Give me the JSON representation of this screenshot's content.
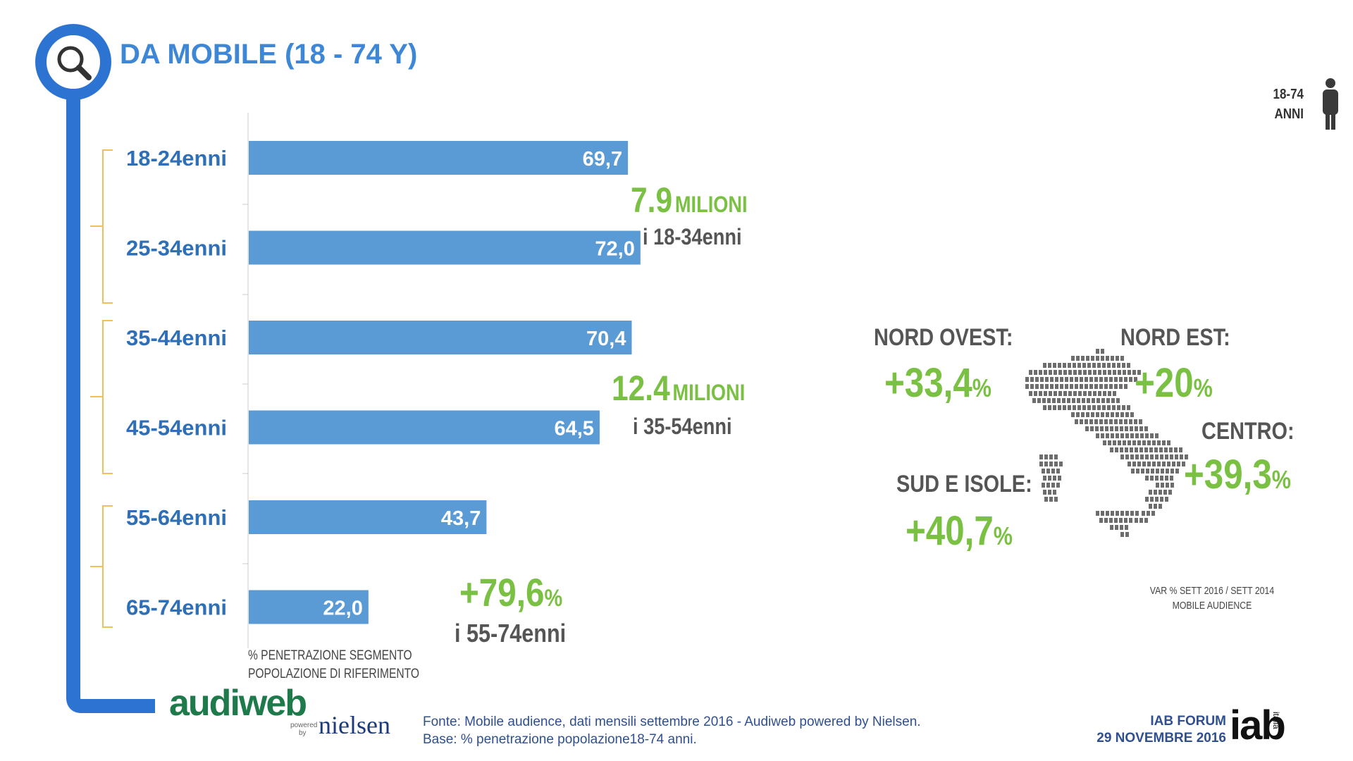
{
  "title": "DA MOBILE (18 - 74 Y)",
  "person_label": [
    "18-74",
    "ANNI"
  ],
  "chart_data": {
    "type": "bar",
    "orientation": "horizontal",
    "categories": [
      "18-24enni",
      "25-34enni",
      "35-44enni",
      "45-54enni",
      "55-64enni",
      "65-74enni"
    ],
    "values": [
      69.7,
      72.0,
      70.4,
      64.5,
      43.7,
      22.0
    ],
    "value_labels": [
      "69,7",
      "72,0",
      "70,4",
      "64,5",
      "43,7",
      "22,0"
    ],
    "xlim": [
      0,
      100
    ],
    "bar_color": "#5b9bd5",
    "label_color": "#2e6fb7",
    "axis_note": [
      "% PENETRAZIONE SEGMENTO",
      "POPOLAZIONE DI RIFERIMENTO"
    ]
  },
  "callouts": [
    {
      "number": "7.9",
      "unit": "MILIONI",
      "sub": "i 18-34enni"
    },
    {
      "number": "12.4",
      "unit": "MILIONI",
      "sub": "i 35-54enni"
    },
    {
      "number": "+79,6",
      "unit": "%",
      "sub": "i 55-74enni"
    }
  ],
  "regions": [
    {
      "name": "NORD OVEST:",
      "value": "+33,4",
      "pct": "%"
    },
    {
      "name": "NORD EST:",
      "value": "+20",
      "pct": "%"
    },
    {
      "name": "CENTRO:",
      "value": "+39,3",
      "pct": "%"
    },
    {
      "name": "SUD E ISOLE:",
      "value": "+40,7",
      "pct": "%"
    }
  ],
  "var_note": [
    "VAR % SETT 2016 / SETT 2014",
    "MOBILE AUDIENCE"
  ],
  "source": [
    "Fonte: Mobile audience, dati mensili settembre 2016 - Audiweb powered by Nielsen.",
    "Base: % penetrazione popolazione18-74 anni."
  ],
  "logos": {
    "audiweb": "audiweb",
    "powered": [
      "powered",
      "by"
    ],
    "nielsen": "nielsen",
    "iab_event": [
      "IAB FORUM",
      "29 NOVEMBRE 2016"
    ],
    "iab": "iab",
    "iab_sub": "italia"
  },
  "colors": {
    "accent_blue": "#3d87d6",
    "green": "#7ac143",
    "bracket": "#f0c05a",
    "map": "#6d6d6d"
  }
}
